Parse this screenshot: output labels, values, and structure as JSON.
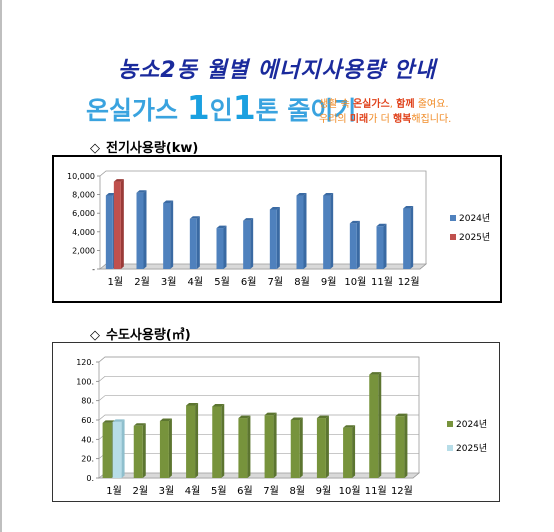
{
  "page": {
    "title": "농소2동 월별 에너지사용량 안내",
    "slogan": {
      "part1": "온실가스 ",
      "one1": "1",
      "part2": "인",
      "one2": "1",
      "part3": "톤 줄이기"
    },
    "slogan_sub": {
      "l1a": "생활 속 ",
      "l1b": "온실가스",
      "l1c": ", ",
      "l1d": "함께",
      "l1e": " 줄여요.",
      "l2a": "우리의 ",
      "l2b": "미래",
      "l2c": "가 더 ",
      "l2d": "행복",
      "l2e": "해집니다."
    },
    "section1": {
      "mark": "◇",
      "label": "전기사용량(kw)"
    },
    "section2": {
      "mark": "◇",
      "label": "수도사용량(㎥)"
    }
  },
  "colors": {
    "title": "#1a2a9c",
    "e2024": "#4f81bd",
    "e2025": "#c0504d",
    "w2024": "#77933c",
    "w2025": "#b7dde8"
  },
  "chart_data": [
    {
      "type": "bar",
      "categories": [
        "1월",
        "2월",
        "3월",
        "4월",
        "5월",
        "6월",
        "7월",
        "8월",
        "9월",
        "10월",
        "11월",
        "12월"
      ],
      "series": [
        {
          "name": "2024년",
          "values": [
            7900,
            8200,
            7100,
            5400,
            4400,
            5200,
            6400,
            7900,
            7900,
            4900,
            4600,
            6500
          ]
        },
        {
          "name": "2025년",
          "values": [
            9400,
            null,
            null,
            null,
            null,
            null,
            null,
            null,
            null,
            null,
            null,
            null
          ]
        }
      ],
      "yticks": [
        "-",
        "2,000",
        "4,000",
        "6,000",
        "8,000",
        "10,000"
      ],
      "ylim": [
        0,
        10000
      ],
      "grid": false,
      "legend": "right"
    },
    {
      "type": "bar",
      "categories": [
        "1월",
        "2월",
        "3월",
        "4월",
        "5월",
        "6월",
        "7월",
        "8월",
        "9월",
        "10월",
        "11월",
        "12월"
      ],
      "series": [
        {
          "name": "2024년",
          "values": [
            57,
            54,
            59,
            75,
            74,
            62,
            65,
            60,
            62,
            52,
            107,
            64
          ]
        },
        {
          "name": "2025년",
          "values": [
            58,
            null,
            null,
            null,
            null,
            null,
            null,
            null,
            null,
            null,
            null,
            null
          ]
        }
      ],
      "yticks": [
        "0.",
        "20.",
        "40.",
        "60.",
        "80.",
        "100.",
        "120."
      ],
      "ylim": [
        0,
        120
      ],
      "grid": true,
      "legend": "right"
    }
  ]
}
